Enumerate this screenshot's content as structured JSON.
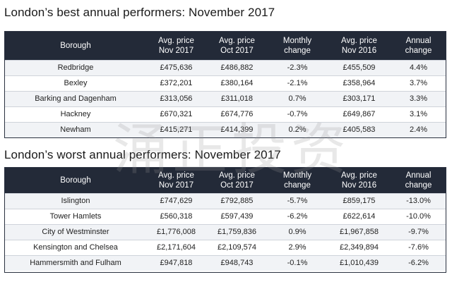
{
  "best": {
    "title": "London’s best annual performers: November 2017",
    "headers": [
      {
        "line1": "Borough",
        "line2": ""
      },
      {
        "line1": "Avg. price",
        "line2": "Nov 2017"
      },
      {
        "line1": "Avg. price",
        "line2": "Oct 2017"
      },
      {
        "line1": "Monthly",
        "line2": "change"
      },
      {
        "line1": "Avg. price",
        "line2": "Nov 2016"
      },
      {
        "line1": "Annual",
        "line2": "change"
      }
    ],
    "rows": [
      [
        "Redbridge",
        "£475,636",
        "£486,882",
        "-2.3%",
        "£455,509",
        "4.4%"
      ],
      [
        "Bexley",
        "£372,201",
        "£380,164",
        "-2.1%",
        "£358,964",
        "3.7%"
      ],
      [
        "Barking and Dagenham",
        "£313,056",
        "£311,018",
        "0.7%",
        "£303,171",
        "3.3%"
      ],
      [
        "Hackney",
        "£670,321",
        "£674,776",
        "-0.7%",
        "£649,867",
        "3.1%"
      ],
      [
        "Newham",
        "£415,271",
        "£414,399",
        "0.2%",
        "£405,583",
        "2.4%"
      ]
    ]
  },
  "worst": {
    "title": "London’s worst annual performers: November 2017",
    "headers": [
      {
        "line1": "Borough",
        "line2": ""
      },
      {
        "line1": "Avg. price",
        "line2": "Nov 2017"
      },
      {
        "line1": "Avg. price",
        "line2": "Oct 2017"
      },
      {
        "line1": "Monthly",
        "line2": "change"
      },
      {
        "line1": "Avg. price",
        "line2": "Nov 2016"
      },
      {
        "line1": "Annual",
        "line2": "change"
      }
    ],
    "rows": [
      [
        "Islington",
        "£747,629",
        "£792,885",
        "-5.7%",
        "£859,175",
        "-13.0%"
      ],
      [
        "Tower Hamlets",
        "£560,318",
        "£597,439",
        "-6.2%",
        "£622,614",
        "-10.0%"
      ],
      [
        "City of Westminster",
        "£1,776,008",
        "£1,759,836",
        "0.9%",
        "£1,967,858",
        "-9.7%"
      ],
      [
        "Kensington and Chelsea",
        "£2,171,604",
        "£2,109,574",
        "2.9%",
        "£2,349,894",
        "-7.6%"
      ],
      [
        "Hammersmith and Fulham",
        "£947,818",
        "£948,743",
        "-0.1%",
        "£1,010,439",
        "-6.2%"
      ]
    ]
  },
  "watermark": {
    "text": "涌正投资"
  },
  "colors": {
    "header_bg": "#232a38",
    "row_alt_bg": "#f1f3f6"
  }
}
